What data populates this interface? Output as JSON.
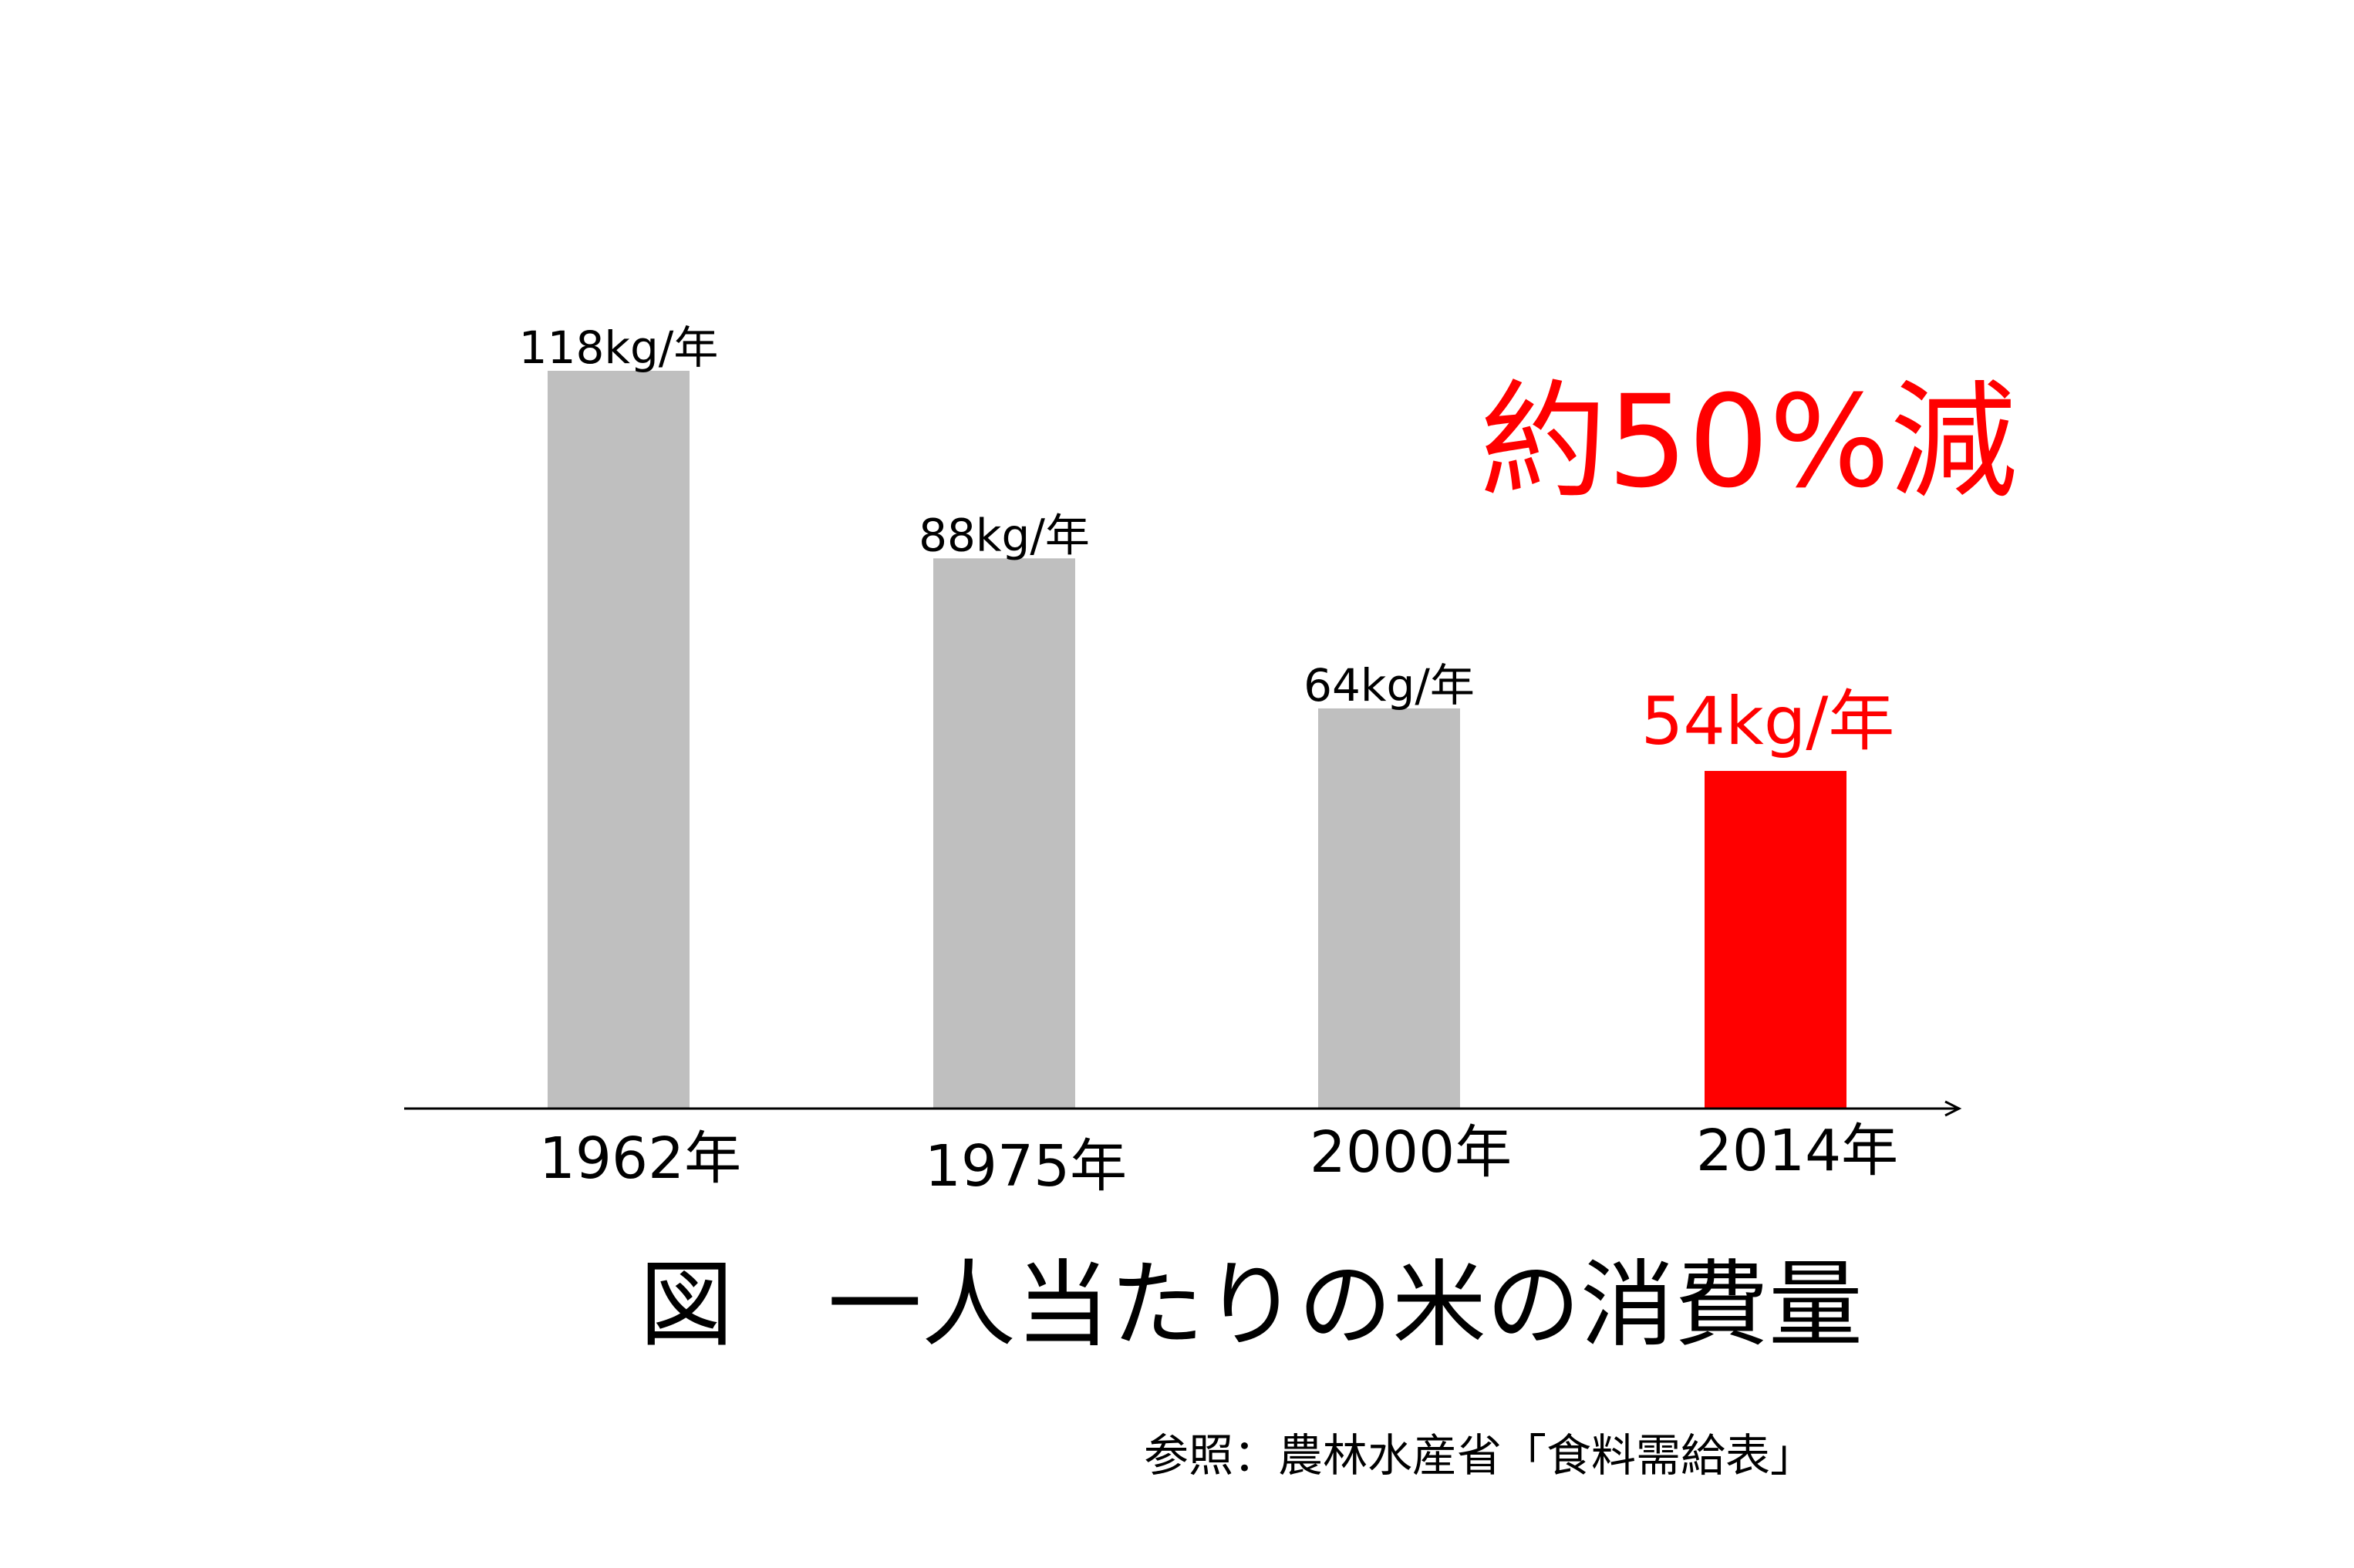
{
  "chart_data": {
    "type": "bar",
    "categories": [
      "1962年",
      "1975年",
      "2000年",
      "2014年"
    ],
    "values": [
      118,
      88,
      64,
      54
    ],
    "value_labels": [
      "118kg/年",
      "88kg/年",
      "64kg/年",
      "54kg/年"
    ],
    "highlight_index": 3,
    "ylim": [
      0,
      140
    ],
    "grid": false,
    "title": "図　一人当たりの米の消費量",
    "annotation": "約50%減",
    "source": "参照：農林水産省「食料需給表」",
    "colors": {
      "bar": "#bfbfbf",
      "highlight": "#ff0000",
      "axis": "#000000",
      "annotation": "#ff0000"
    }
  }
}
